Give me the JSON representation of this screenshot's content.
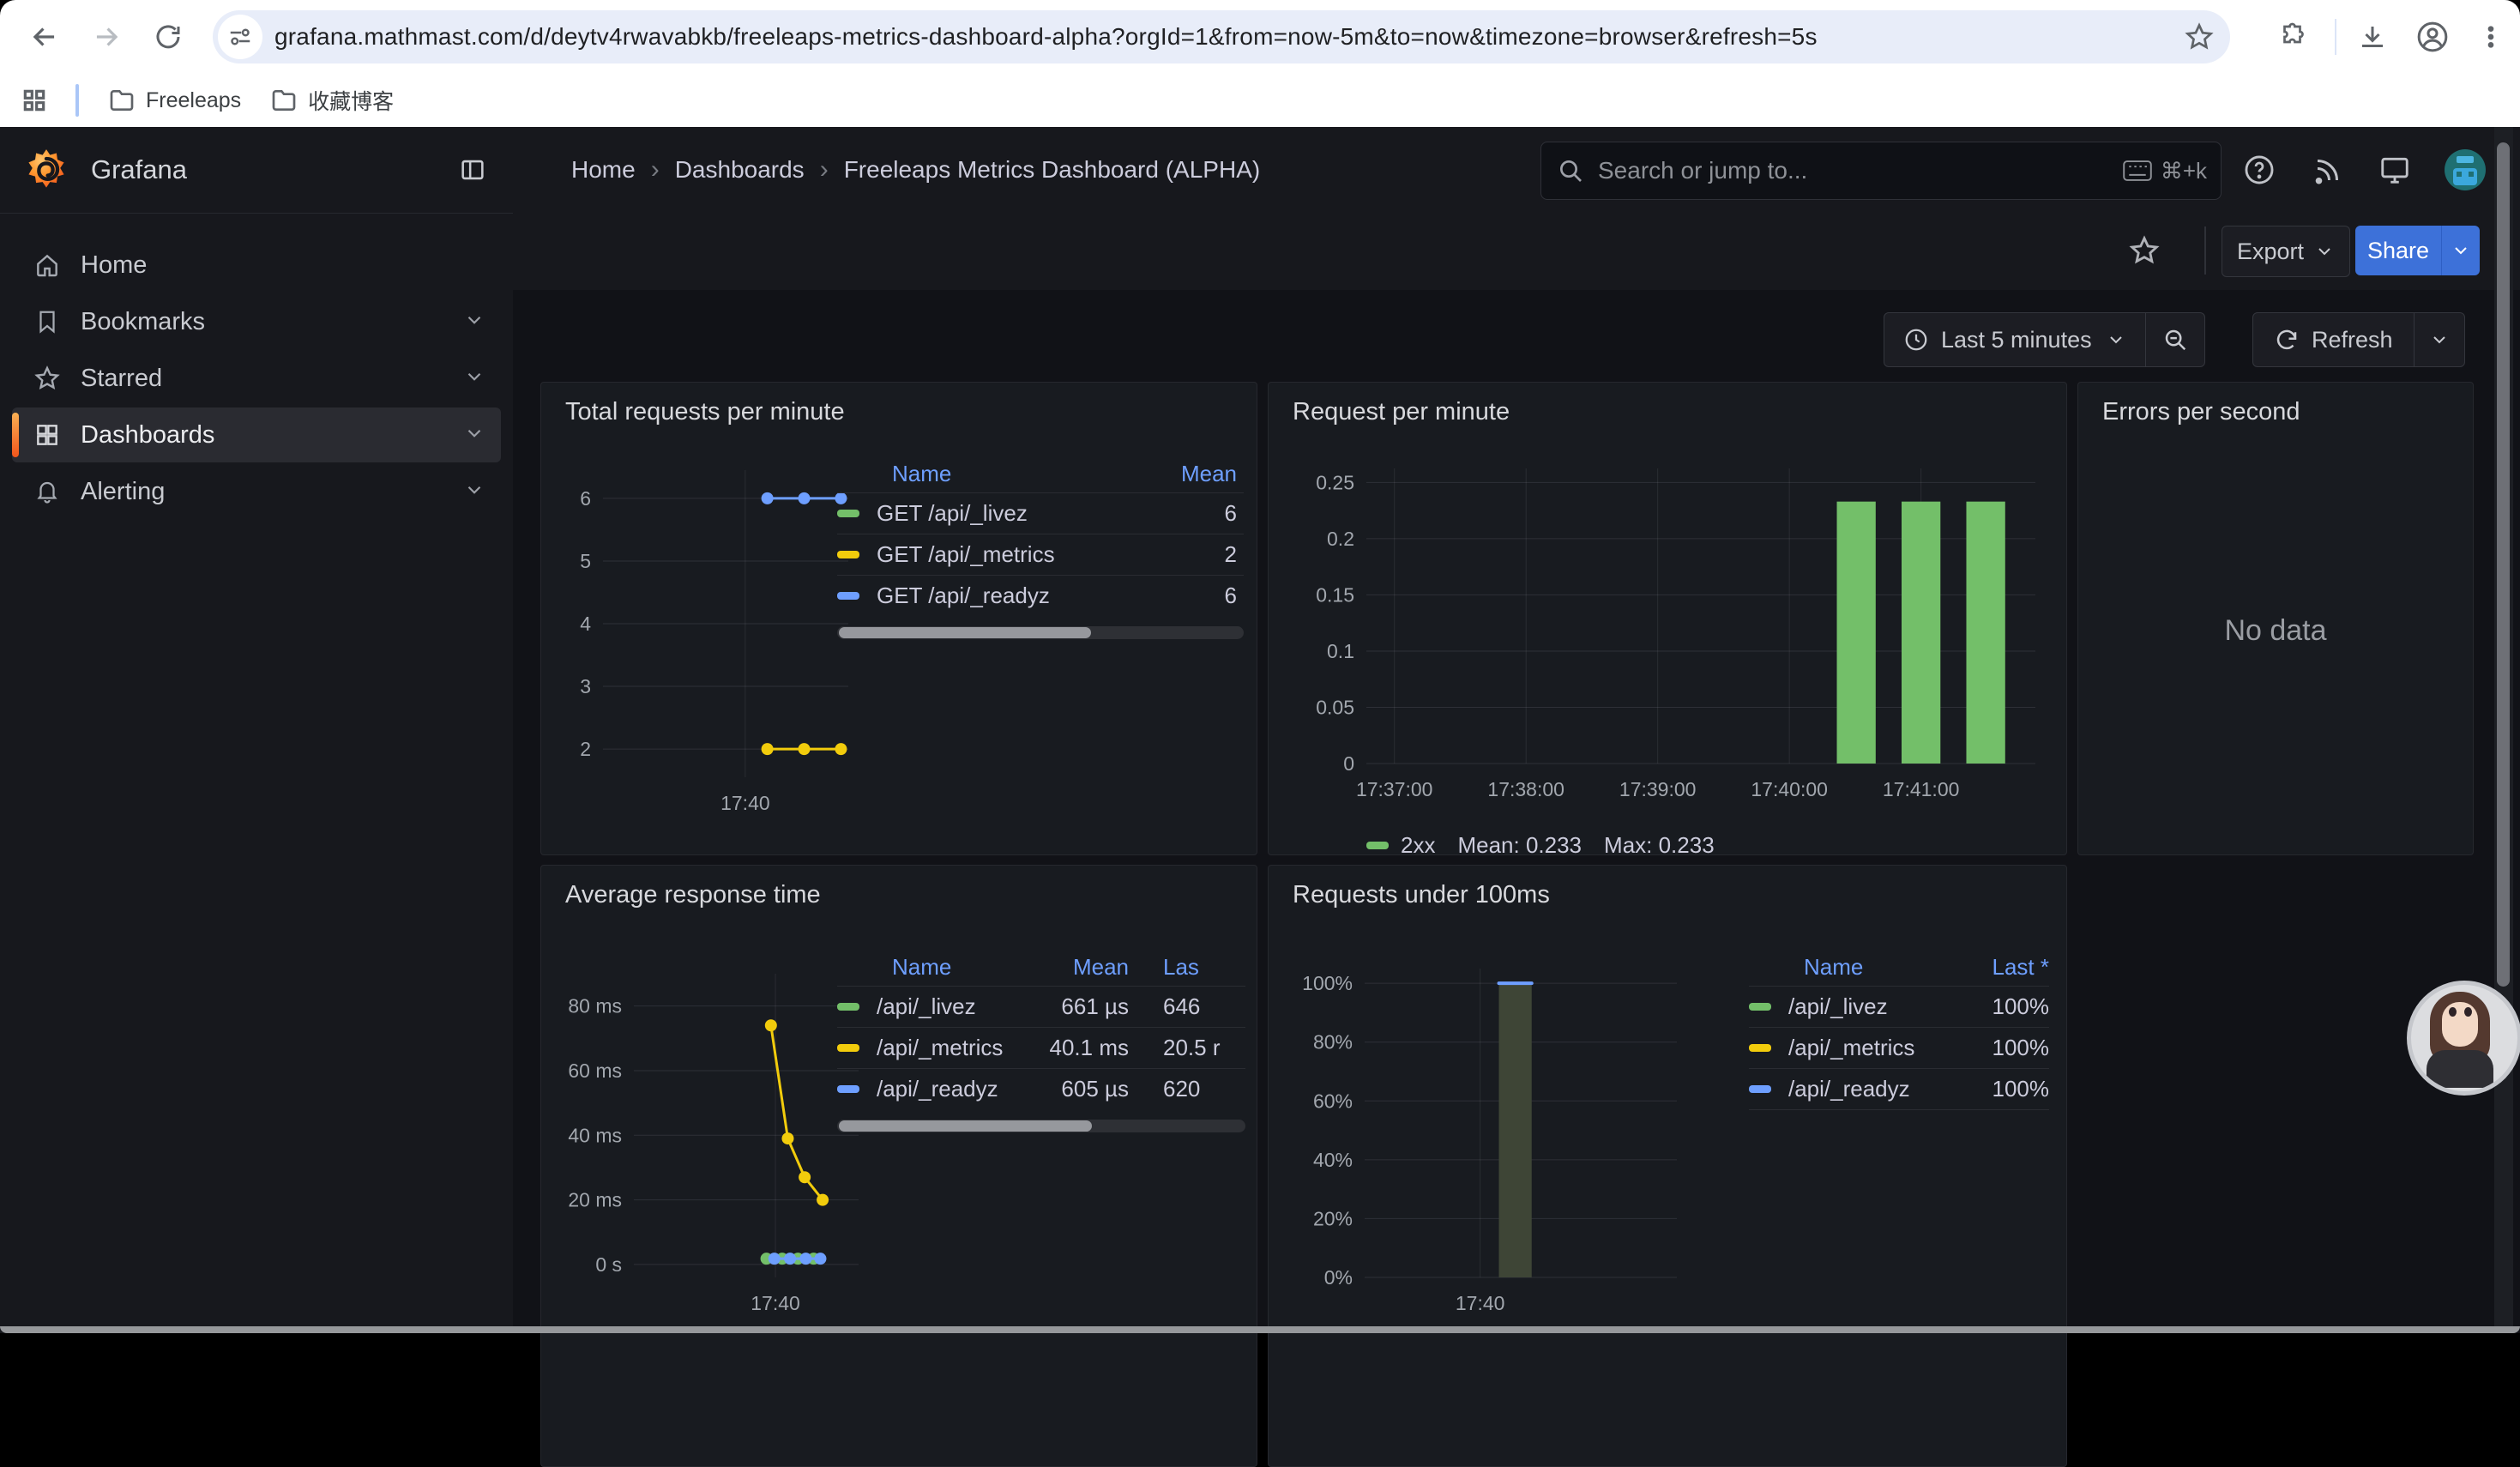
{
  "browser": {
    "url": "grafana.mathmast.com/d/deytv4rwavabkb/freeleaps-metrics-dashboard-alpha?orgId=1&from=now-5m&to=now&timezone=browser&refresh=5s",
    "bookmarks": [
      {
        "label": "Freeleaps"
      },
      {
        "label": "收藏博客"
      }
    ]
  },
  "nav": {
    "brand": "Grafana",
    "breadcrumb": [
      "Home",
      "Dashboards",
      "Freeleaps Metrics Dashboard (ALPHA)"
    ],
    "search_placeholder": "Search or jump to...",
    "search_shortcut": "⌘+k"
  },
  "sidebar": {
    "items": [
      {
        "label": "Home"
      },
      {
        "label": "Bookmarks"
      },
      {
        "label": "Starred"
      },
      {
        "label": "Dashboards"
      },
      {
        "label": "Alerting"
      }
    ]
  },
  "toolbar": {
    "export_label": "Export",
    "share_label": "Share"
  },
  "timebar": {
    "range_label": "Last 5 minutes",
    "refresh_label": "Refresh"
  },
  "colors": {
    "green": "#73BF69",
    "yellow": "#F2CC0C",
    "blue": "#6E9FFF",
    "share_blue": "#3D71D9",
    "olive_fill": "#3E4536"
  },
  "panels": [
    {
      "title": "Total requests per minute",
      "legend": {
        "headers": [
          "Name",
          "Mean"
        ],
        "rows": [
          {
            "name": "GET /api/_livez",
            "swatch": "#73BF69",
            "mean": "6"
          },
          {
            "name": "GET /api/_metrics",
            "swatch": "#F2CC0C",
            "mean": "2"
          },
          {
            "name": "GET /api/_readyz",
            "swatch": "#6E9FFF",
            "mean": "6"
          }
        ]
      },
      "chart": {
        "type": "line",
        "x_domain": [
          0,
          100
        ],
        "y_domain": [
          1.55,
          6.45
        ],
        "y_ticks": [
          {
            "v": 2,
            "label": "2"
          },
          {
            "v": 3,
            "label": "3"
          },
          {
            "v": 4,
            "label": "4"
          },
          {
            "v": 5,
            "label": "5"
          },
          {
            "v": 6,
            "label": "6"
          }
        ],
        "x_ticks": [
          {
            "v": 58,
            "label": "17:40"
          }
        ],
        "series": [
          {
            "name": "GET /api/_readyz",
            "color": "#6E9FFF",
            "dots": true,
            "points": [
              [
                67,
                6
              ],
              [
                82,
                6
              ],
              [
                97,
                6
              ]
            ]
          },
          {
            "name": "GET /api/_metrics",
            "color": "#F2CC0C",
            "dots": true,
            "points": [
              [
                67,
                2
              ],
              [
                82,
                2
              ],
              [
                97,
                2
              ]
            ]
          }
        ]
      }
    },
    {
      "title": "Request per minute",
      "legend_line": {
        "swatch": "#73BF69",
        "series": "2xx",
        "mean": "Mean: 0.233",
        "max": "Max: 0.233"
      },
      "chart": {
        "type": "bar",
        "x_domain": [
          0,
          310
        ],
        "y_domain": [
          0,
          0.2625
        ],
        "y_ticks": [
          {
            "v": 0,
            "label": "0"
          },
          {
            "v": 0.05,
            "label": "0.05"
          },
          {
            "v": 0.1,
            "label": "0.1"
          },
          {
            "v": 0.15,
            "label": "0.15"
          },
          {
            "v": 0.2,
            "label": "0.2"
          },
          {
            "v": 0.25,
            "label": "0.25"
          }
        ],
        "x_ticks": [
          {
            "v": 13,
            "label": "17:37:00"
          },
          {
            "v": 74,
            "label": "17:38:00"
          },
          {
            "v": 135,
            "label": "17:39:00"
          },
          {
            "v": 196,
            "label": "17:40:00"
          },
          {
            "v": 257,
            "label": "17:41:00"
          }
        ],
        "bars": [
          {
            "x0": 218,
            "x1": 236,
            "v": 0.233,
            "color": "#73BF69"
          },
          {
            "x0": 248,
            "x1": 266,
            "v": 0.233,
            "color": "#73BF69"
          },
          {
            "x0": 278,
            "x1": 296,
            "v": 0.233,
            "color": "#73BF69"
          }
        ],
        "series": []
      }
    },
    {
      "title": "Errors per second",
      "no_data": "No data"
    },
    {
      "title": "Average response time",
      "legend": {
        "headers": [
          "Name",
          "Mean",
          "Las"
        ],
        "rows": [
          {
            "name": "/api/_livez",
            "swatch": "#73BF69",
            "mean": "661 µs",
            "last": "646"
          },
          {
            "name": "/api/_metrics",
            "swatch": "#F2CC0C",
            "mean": "40.1 ms",
            "last": "20.5 r"
          },
          {
            "name": "/api/_readyz",
            "swatch": "#6E9FFF",
            "mean": "605 µs",
            "last": "620"
          }
        ]
      },
      "chart": {
        "type": "line",
        "x_domain": [
          0,
          100
        ],
        "y_domain": [
          -4,
          90
        ],
        "y_ticks": [
          {
            "v": 0,
            "label": "0 s"
          },
          {
            "v": 20,
            "label": "20 ms"
          },
          {
            "v": 40,
            "label": "40 ms"
          },
          {
            "v": 60,
            "label": "60 ms"
          },
          {
            "v": 80,
            "label": "80 ms"
          }
        ],
        "x_ticks": [
          {
            "v": 63,
            "label": "17:40"
          }
        ],
        "series": [
          {
            "name": "/api/_metrics",
            "color": "#F2CC0C",
            "dots": true,
            "points": [
              [
                61,
                74
              ],
              [
                68.5,
                39
              ],
              [
                76,
                27
              ],
              [
                84,
                20
              ]
            ]
          },
          {
            "name": "/api/_livez",
            "color": "#73BF69",
            "dots": true,
            "points": [
              [
                59,
                1.8
              ],
              [
                66,
                1.8
              ],
              [
                73,
                1.8
              ],
              [
                80,
                1.8
              ]
            ]
          },
          {
            "name": "/api/_readyz",
            "color": "#6E9FFF",
            "dots": true,
            "points": [
              [
                62.5,
                1.8
              ],
              [
                69.5,
                1.8
              ],
              [
                76.5,
                1.8
              ],
              [
                83,
                1.8
              ]
            ]
          }
        ]
      }
    },
    {
      "title": "Requests under 100ms",
      "legend": {
        "headers": [
          "Name",
          "Last *"
        ],
        "rows": [
          {
            "name": "/api/_livez",
            "swatch": "#73BF69",
            "last": "100%"
          },
          {
            "name": "/api/_metrics",
            "swatch": "#F2CC0C",
            "last": "100%"
          },
          {
            "name": "/api/_readyz",
            "swatch": "#6E9FFF",
            "last": "100%"
          }
        ]
      },
      "chart": {
        "type": "bar",
        "x_domain": [
          0,
          100
        ],
        "y_domain": [
          0,
          105
        ],
        "y_ticks": [
          {
            "v": 0,
            "label": "0%"
          },
          {
            "v": 20,
            "label": "20%"
          },
          {
            "v": 40,
            "label": "40%"
          },
          {
            "v": 60,
            "label": "60%"
          },
          {
            "v": 80,
            "label": "80%"
          },
          {
            "v": 100,
            "label": "100%"
          }
        ],
        "x_ticks": [
          {
            "v": 37,
            "label": "17:40"
          }
        ],
        "bars": [
          {
            "x0": 43,
            "x1": 53.5,
            "v": 100,
            "color": "#3E4536"
          }
        ],
        "series": [
          {
            "name": "/api/_readyz",
            "color": "#6E9FFF",
            "dots": false,
            "width": 4,
            "points": [
              [
                43,
                100
              ],
              [
                53.5,
                100
              ]
            ]
          }
        ]
      }
    }
  ]
}
